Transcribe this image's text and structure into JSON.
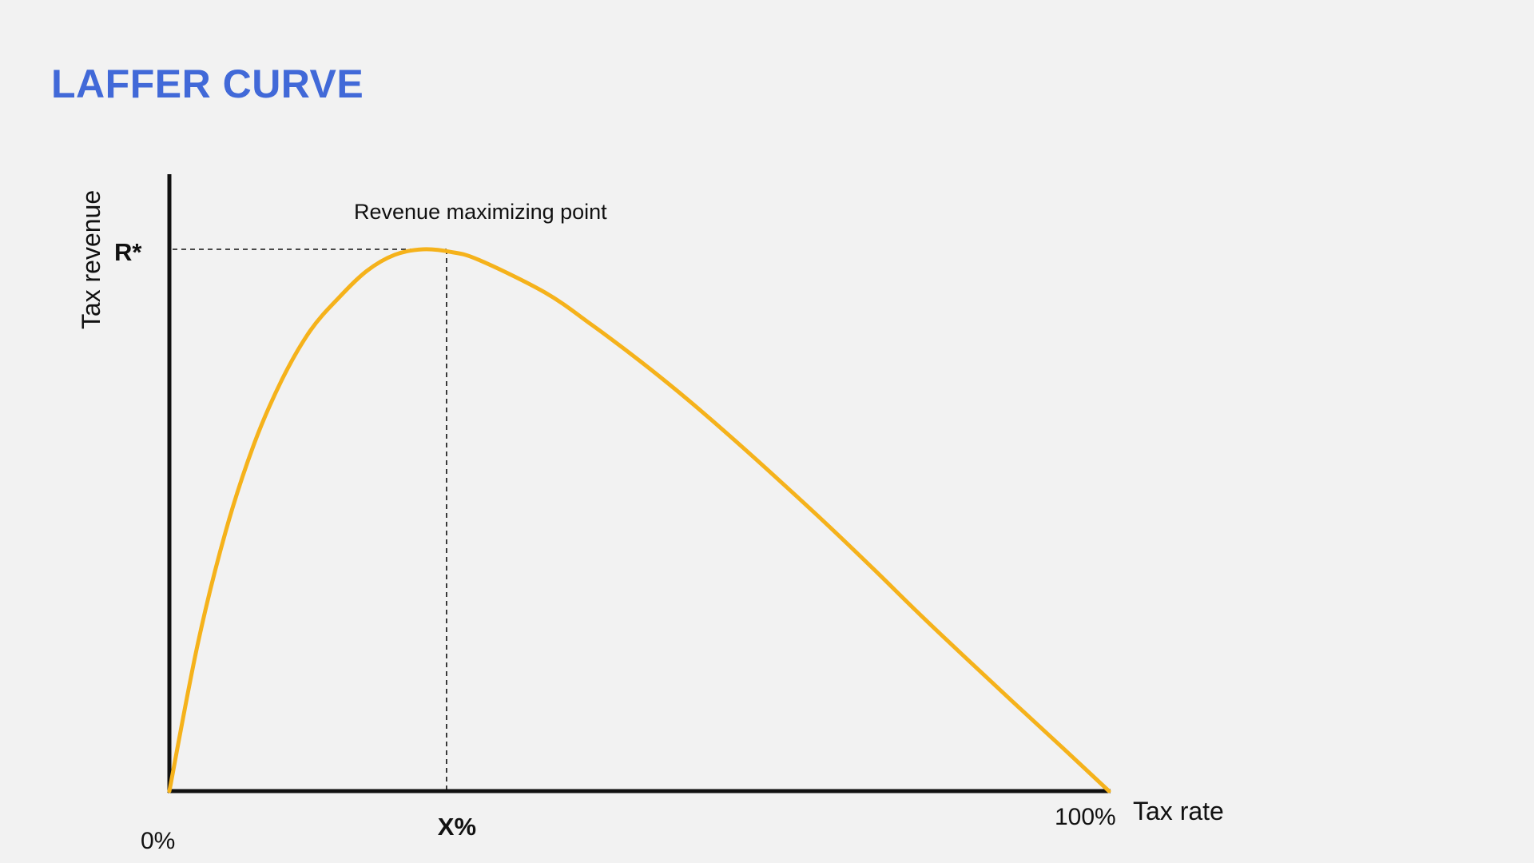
{
  "slide": {
    "title": "LAFFER CURVE"
  },
  "colors": {
    "title": "#4169d8",
    "curve": "#f5b21b",
    "axis": "#111111",
    "background": "#f2f2f2"
  },
  "chart_data": {
    "type": "line",
    "title": "LAFFER CURVE",
    "xlabel": "Tax rate",
    "ylabel": "Tax revenue",
    "x_tick_labels": {
      "start": "0%",
      "end": "100%"
    },
    "xlim": [
      0,
      100
    ],
    "ylim": [
      0,
      100
    ],
    "grid": false,
    "series": [
      {
        "x": [
          0,
          3,
          6,
          9,
          12,
          15,
          18,
          21,
          24,
          27,
          30,
          33,
          40,
          45,
          50,
          55,
          60,
          65,
          70,
          75,
          80,
          85,
          90,
          95,
          100
        ],
        "y": [
          0,
          27,
          48,
          64,
          76,
          85,
          91,
          96,
          99,
          100,
          99.5,
          98,
          92,
          86,
          79.5,
          72.5,
          65,
          57.2,
          49.2,
          40.9,
          32.4,
          24.2,
          16.1,
          8.1,
          0
        ]
      }
    ],
    "annotations": {
      "peak_label": "Revenue maximizing point",
      "peak_x": 29.5,
      "peak_y": 100,
      "peak_x_label": "X%",
      "peak_y_label": "R*"
    }
  }
}
